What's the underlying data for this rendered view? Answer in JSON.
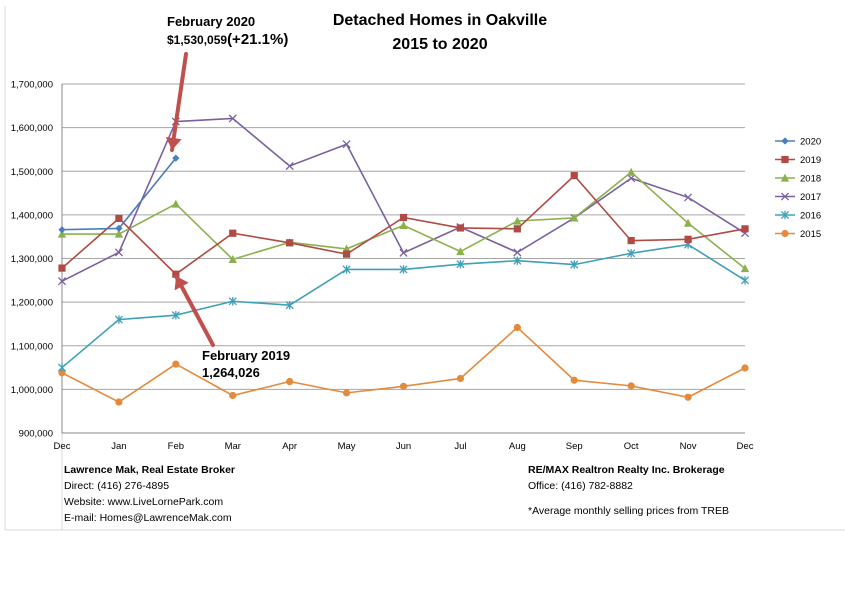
{
  "chart_data": {
    "type": "line",
    "title_line1": "Detached Homes in Oakville",
    "title_line2": "2015 to 2020",
    "categories": [
      "Dec",
      "Jan",
      "Feb",
      "Mar",
      "Apr",
      "May",
      "Jun",
      "Jul",
      "Aug",
      "Sep",
      "Oct",
      "Nov",
      "Dec"
    ],
    "ylim": [
      900000,
      1700000
    ],
    "yticks": [
      900000,
      1000000,
      1100000,
      1200000,
      1300000,
      1400000,
      1500000,
      1600000,
      1700000
    ],
    "ytick_labels": [
      "900,000",
      "1,000,000",
      "1,100,000",
      "1,200,000",
      "1,300,000",
      "1,400,000",
      "1,500,000",
      "1,600,000",
      "1,700,000"
    ],
    "grid": true,
    "legend_position": "right",
    "series": [
      {
        "name": "2020",
        "color": "#4a7ebb",
        "marker": "diamond",
        "values": [
          1366000,
          1369000,
          1530059,
          null,
          null,
          null,
          null,
          null,
          null,
          null,
          null,
          null,
          null
        ]
      },
      {
        "name": "2019",
        "color": "#b04a44",
        "marker": "square",
        "values": [
          1278000,
          1392000,
          1264026,
          1358000,
          1336000,
          1310000,
          1394000,
          1370000,
          1368000,
          1490000,
          1341000,
          1344000,
          1368000
        ]
      },
      {
        "name": "2018",
        "color": "#8cb04d",
        "marker": "triangle",
        "values": [
          1356000,
          1356000,
          1425000,
          1298000,
          1337000,
          1322000,
          1376000,
          1316000,
          1386000,
          1393000,
          1498000,
          1381000,
          1277000
        ]
      },
      {
        "name": "2017",
        "color": "#7b60a0",
        "marker": "x",
        "values": [
          1248000,
          1314000,
          1614000,
          1621000,
          1512000,
          1562000,
          1313000,
          1372000,
          1314000,
          1393000,
          1484000,
          1440000,
          1358000
        ]
      },
      {
        "name": "2016",
        "color": "#3fa0b8",
        "marker": "star",
        "values": [
          1050000,
          1160000,
          1170000,
          1202000,
          1193000,
          1275000,
          1275000,
          1287000,
          1295000,
          1286000,
          1312000,
          1332000,
          1250000
        ]
      },
      {
        "name": "2015",
        "color": "#e38a3c",
        "marker": "circle",
        "values": [
          1038000,
          971000,
          1058000,
          986000,
          1018000,
          992000,
          1007000,
          1025000,
          1142000,
          1021000,
          1008000,
          982000,
          1049000
        ]
      }
    ]
  },
  "annotations": {
    "feb2020_title": "February 2020",
    "feb2020_value": "$1,530,059",
    "feb2020_change": "(+21.1%)",
    "feb2019_title": "February 2019",
    "feb2019_value": "1,264,026",
    "arrow_color": "#c0504d"
  },
  "footer": {
    "left_name": "Lawrence Mak, Real Estate Broker",
    "left_direct": "Direct:  (416) 276-4895",
    "left_website": "Website:  www.LiveLornePark.com",
    "left_email": "E-mail:  Homes@LawrenceMak.com",
    "right_company": "RE/MAX Realtron Realty Inc. Brokerage",
    "right_office": "Office: (416) 782-8882",
    "right_note": "*Average monthly selling prices from TREB"
  }
}
